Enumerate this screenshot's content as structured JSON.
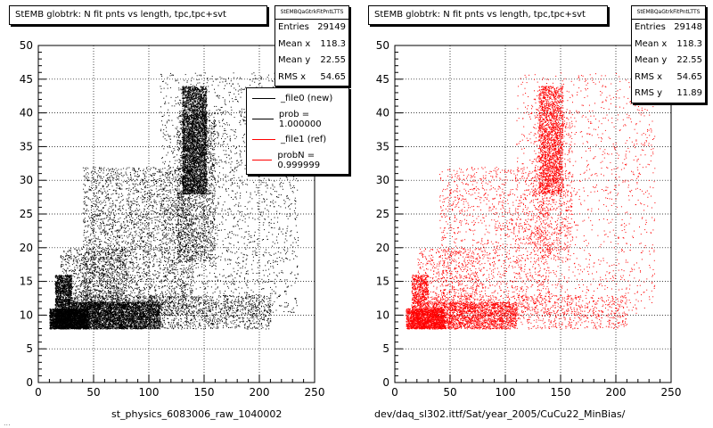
{
  "colors": {
    "left": "#000000",
    "right": "#ff0000"
  },
  "footer_text": "...",
  "chart_data": [
    {
      "type": "scatter",
      "title": "StEMB globtrk: N fit pnts vs length, tpc,tpc+svt",
      "xlabel": "st_physics_6083006_raw_1040002",
      "ylabel": "",
      "xlim": [
        0,
        250
      ],
      "ylim": [
        0,
        50
      ],
      "xticks": [
        0,
        50,
        100,
        150,
        200,
        250
      ],
      "yticks": [
        0,
        5,
        10,
        15,
        20,
        25,
        30,
        35,
        40,
        45,
        50
      ],
      "grid": true,
      "color": "#000000",
      "stats": {
        "name": "StEMBQaGtrkFitPntLTTS",
        "rows": [
          {
            "label": "Entries",
            "value": "29149"
          },
          {
            "label": "Mean x",
            "value": "118.3"
          },
          {
            "label": "Mean y",
            "value": "22.55"
          },
          {
            "label": "RMS x",
            "value": "54.65"
          }
        ]
      },
      "legend": {
        "placement": "top-right",
        "entries": [
          {
            "label": "_file0 (new)",
            "color": "#000000"
          },
          {
            "label": "prob = 1.000000",
            "color": "#000000"
          },
          {
            "label": "_file1 (ref)",
            "color": "#ff0000"
          },
          {
            "label": "probN = 0.999999",
            "color": "#ff0000"
          }
        ]
      },
      "series": [
        {
          "regions": [
            {
              "x": [
                10,
                45
              ],
              "y": [
                8,
                11
              ],
              "n": 2600
            },
            {
              "x": [
                15,
                30
              ],
              "y": [
                8,
                16
              ],
              "n": 1800
            },
            {
              "x": [
                30,
                110
              ],
              "y": [
                8,
                12
              ],
              "n": 3500
            },
            {
              "x": [
                30,
                210
              ],
              "y": [
                8,
                13
              ],
              "n": 1800
            },
            {
              "x": [
                130,
                152
              ],
              "y": [
                28,
                44
              ],
              "n": 3600
            },
            {
              "x": [
                125,
                160
              ],
              "y": [
                18,
                40
              ],
              "n": 1500
            },
            {
              "x": [
                110,
                235
              ],
              "y": [
                10,
                46
              ],
              "n": 2200
            },
            {
              "x": [
                40,
                140
              ],
              "y": [
                10,
                32
              ],
              "n": 3200
            },
            {
              "x": [
                20,
                80
              ],
              "y": [
                8,
                20
              ],
              "n": 1400
            }
          ]
        }
      ]
    },
    {
      "type": "scatter",
      "title": "StEMB globtrk: N fit pnts vs length, tpc,tpc+svt",
      "xlabel": "dev/daq_sl302.ittf/Sat/year_2005/CuCu22_MinBias/",
      "ylabel": "",
      "xlim": [
        0,
        250
      ],
      "ylim": [
        0,
        50
      ],
      "xticks": [
        0,
        50,
        100,
        150,
        200,
        250
      ],
      "yticks": [
        0,
        5,
        10,
        15,
        20,
        25,
        30,
        35,
        40,
        45,
        50
      ],
      "grid": true,
      "color": "#ff0000",
      "stats": {
        "name": "StEMBQaGtrkFitPntLTTS",
        "rows": [
          {
            "label": "Entries",
            "value": "29148"
          },
          {
            "label": "Mean x",
            "value": "118.3"
          },
          {
            "label": "Mean y",
            "value": "22.55"
          },
          {
            "label": "RMS x",
            "value": "54.65"
          },
          {
            "label": "RMS y",
            "value": "11.89"
          }
        ]
      },
      "series": [
        {
          "regions": [
            {
              "x": [
                10,
                45
              ],
              "y": [
                8,
                11
              ],
              "n": 1400
            },
            {
              "x": [
                15,
                30
              ],
              "y": [
                8,
                16
              ],
              "n": 900
            },
            {
              "x": [
                30,
                110
              ],
              "y": [
                8,
                12
              ],
              "n": 1800
            },
            {
              "x": [
                30,
                210
              ],
              "y": [
                8,
                13
              ],
              "n": 1000
            },
            {
              "x": [
                130,
                152
              ],
              "y": [
                28,
                44
              ],
              "n": 1800
            },
            {
              "x": [
                125,
                160
              ],
              "y": [
                18,
                40
              ],
              "n": 800
            },
            {
              "x": [
                110,
                235
              ],
              "y": [
                10,
                46
              ],
              "n": 1200
            },
            {
              "x": [
                40,
                140
              ],
              "y": [
                10,
                32
              ],
              "n": 1600
            },
            {
              "x": [
                20,
                80
              ],
              "y": [
                8,
                20
              ],
              "n": 700
            }
          ]
        }
      ]
    }
  ]
}
